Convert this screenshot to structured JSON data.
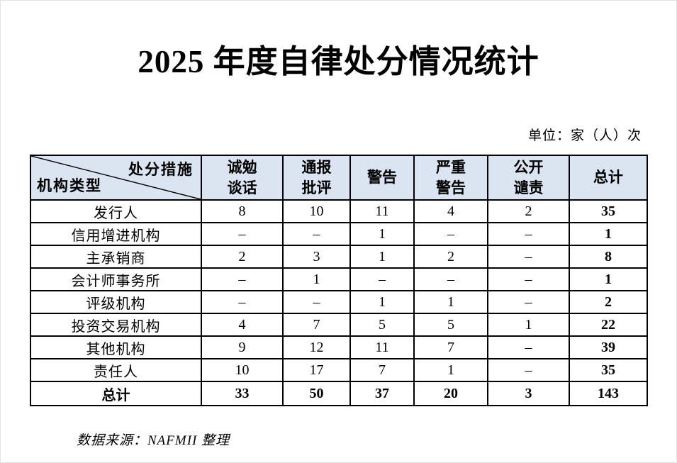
{
  "title": "2025 年度自律处分情况统计",
  "unit_note": "单位：家（人）次",
  "source_note": "数据来源：NAFMII 整理",
  "colors": {
    "header_bg": "#dbe5f1",
    "border": "#000000",
    "text": "#000000"
  },
  "table": {
    "corner": {
      "top_right": "处分措施",
      "bottom_left": "机构类型"
    },
    "headers": [
      {
        "lines": [
          "诚勉",
          "谈话"
        ]
      },
      {
        "lines": [
          "通报",
          "批评"
        ]
      },
      {
        "lines": [
          "警告"
        ]
      },
      {
        "lines": [
          "严重",
          "警告"
        ]
      },
      {
        "lines": [
          "公开",
          "谴责"
        ]
      },
      {
        "lines": [
          "总计"
        ]
      }
    ],
    "rows": [
      {
        "label": "发行人",
        "values": [
          "8",
          "10",
          "11",
          "4",
          "2",
          "35"
        ]
      },
      {
        "label": "信用增进机构",
        "values": [
          "–",
          "–",
          "1",
          "–",
          "–",
          "1"
        ]
      },
      {
        "label": "主承销商",
        "values": [
          "2",
          "3",
          "1",
          "2",
          "–",
          "8"
        ]
      },
      {
        "label": "会计师事务所",
        "values": [
          "–",
          "1",
          "–",
          "–",
          "–",
          "1"
        ]
      },
      {
        "label": "评级机构",
        "values": [
          "–",
          "–",
          "1",
          "1",
          "–",
          "2"
        ]
      },
      {
        "label": "投资交易机构",
        "values": [
          "4",
          "7",
          "5",
          "5",
          "1",
          "22"
        ]
      },
      {
        "label": "其他机构",
        "values": [
          "9",
          "12",
          "11",
          "7",
          "–",
          "39"
        ]
      },
      {
        "label": "责任人",
        "values": [
          "10",
          "17",
          "7",
          "1",
          "–",
          "35"
        ]
      }
    ],
    "total_row": {
      "label": "总计",
      "values": [
        "33",
        "50",
        "37",
        "20",
        "3",
        "143"
      ]
    }
  }
}
